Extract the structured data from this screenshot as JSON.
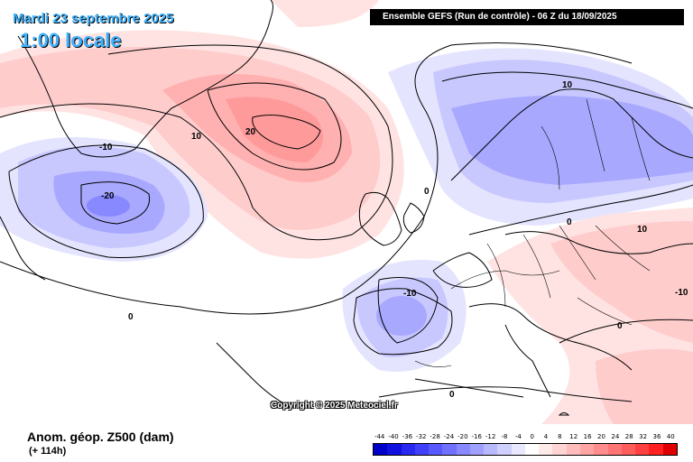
{
  "title": {
    "date": "Mardi 23 septembre 2025",
    "time": "1:00 locale"
  },
  "header": {
    "model_run": "Ensemble GEFS  (Run de contrôle)  -  06 Z du 18/09/2025"
  },
  "variable": {
    "label": "Anom. géop. Z500 (dam)",
    "lead": "(+ 114h)"
  },
  "copyright": "Copyright © 2025 Meteociel.fr",
  "legend": {
    "ticks": [
      "-44",
      "-40",
      "-36",
      "-32",
      "-28",
      "-24",
      "-20",
      "-16",
      "-12",
      "-8",
      "-4",
      "0",
      "4",
      "8",
      "12",
      "16",
      "20",
      "24",
      "28",
      "32",
      "36",
      "40"
    ],
    "colors": [
      "#0000c8",
      "#1010e0",
      "#2828f0",
      "#4040f8",
      "#5858ff",
      "#7070ff",
      "#8888ff",
      "#a0a0ff",
      "#b8b8ff",
      "#d0d0ff",
      "#e8e8ff",
      "#ffffff",
      "#ffeaea",
      "#ffd4d4",
      "#ffbcbc",
      "#ffa4a4",
      "#ff8c8c",
      "#ff7474",
      "#ff5c5c",
      "#ff4040",
      "#ff2020",
      "#e00000"
    ]
  },
  "contour_labels": [
    "-10",
    "-20",
    "10",
    "20",
    "0",
    "-10",
    "10",
    "0",
    "-10",
    "10",
    "0",
    "0",
    "0"
  ],
  "colors": {
    "title_text": "#3fb3ff",
    "positive_anomaly": "#ff9a9a",
    "negative_anomaly": "#a8a8ff"
  }
}
